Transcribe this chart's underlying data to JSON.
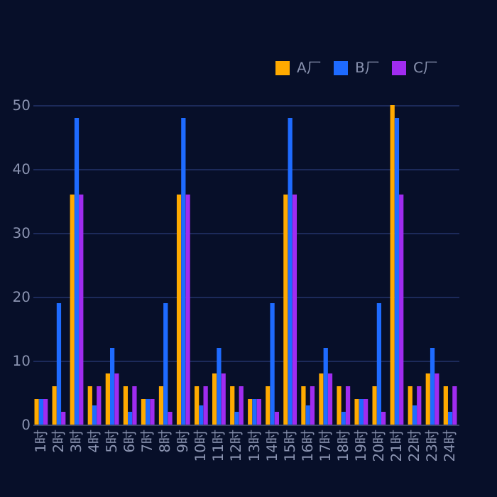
{
  "chart_data": {
    "type": "bar",
    "categories": [
      "1时",
      "2时",
      "3时",
      "4时",
      "5时",
      "6时",
      "7时",
      "8时",
      "9时",
      "10时",
      "11时",
      "12时",
      "13时",
      "14时",
      "15时",
      "16时",
      "17时",
      "18时",
      "19时",
      "20时",
      "21时",
      "22时",
      "23时",
      "24时"
    ],
    "series": [
      {
        "name": "A厂",
        "color": "#ffaa00",
        "values": [
          4,
          6,
          36,
          6,
          8,
          6,
          4,
          6,
          36,
          6,
          8,
          6,
          4,
          6,
          36,
          6,
          8,
          6,
          4,
          6,
          50,
          6,
          8,
          6
        ]
      },
      {
        "name": "B厂",
        "color": "#1e6bff",
        "values": [
          4,
          19,
          48,
          3,
          12,
          2,
          4,
          19,
          48,
          3,
          12,
          2,
          4,
          19,
          48,
          3,
          12,
          2,
          4,
          19,
          48,
          3,
          12,
          2
        ]
      },
      {
        "name": "C厂",
        "color": "#a02cf0",
        "values": [
          4,
          2,
          36,
          6,
          8,
          6,
          4,
          2,
          36,
          6,
          8,
          6,
          4,
          2,
          36,
          6,
          8,
          6,
          4,
          2,
          36,
          6,
          8,
          6
        ]
      }
    ],
    "ylim": [
      0,
      50
    ],
    "yticks": [
      0,
      10,
      20,
      30,
      40,
      50
    ],
    "grid": "y",
    "legend": "top right"
  }
}
